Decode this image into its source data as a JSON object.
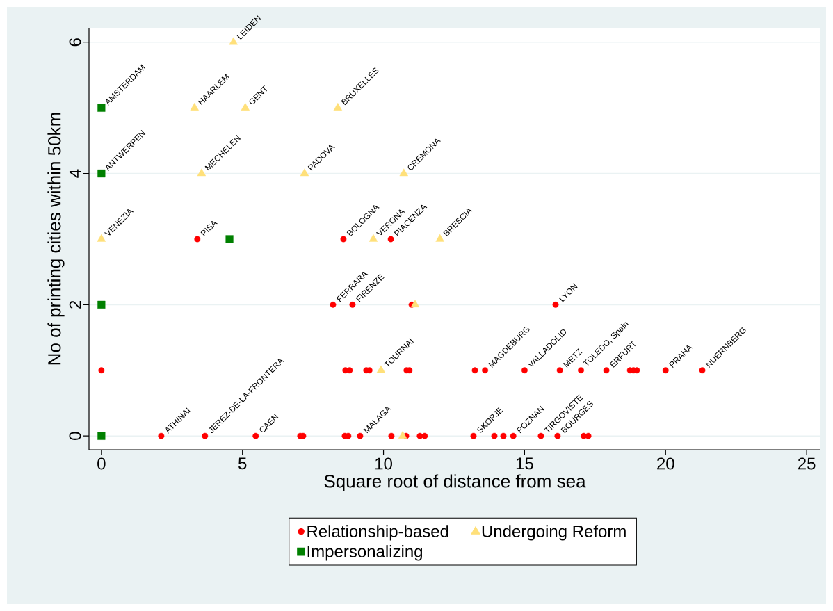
{
  "chart_data": {
    "type": "scatter",
    "xlabel": "Square root of distance from sea",
    "ylabel": "No of printing cities within 50km",
    "xlim": [
      -0.44,
      25.49
    ],
    "ylim": [
      -0.21,
      6.22
    ],
    "xticks": [
      0,
      5,
      10,
      15,
      20,
      25
    ],
    "yticks": [
      0,
      2,
      4,
      6
    ],
    "grid": "y",
    "legend": "bottom",
    "series": [
      {
        "name": "Relationship-based",
        "color": "#ff0000",
        "marker": "circle",
        "x": [
          3.4,
          8.58,
          10.26,
          8.21,
          8.9,
          11.0,
          16.1,
          0,
          8.65,
          8.8,
          9.39,
          9.5,
          10.82,
          10.92,
          13.24,
          13.31,
          13.6,
          15.0,
          16.25,
          17.0,
          17.9,
          18.74,
          18.86,
          18.98,
          20.0,
          21.3,
          2.12,
          3.67,
          5.47,
          7.05,
          7.15,
          8.63,
          8.75,
          9.17,
          10.28,
          10.8,
          11.29,
          11.46,
          13.19,
          13.93,
          14.25,
          14.6,
          15.58,
          16.17,
          17.1,
          17.26
        ],
        "values": [
          3,
          3,
          3,
          2,
          2,
          2,
          2,
          1,
          1,
          1,
          1,
          1,
          1,
          1,
          1,
          null,
          1,
          1,
          1,
          1,
          1,
          1,
          1,
          1,
          1,
          1,
          0,
          0,
          0,
          0,
          0,
          0,
          0,
          0,
          0,
          0,
          0,
          0,
          0,
          0,
          0,
          0,
          0,
          0,
          0,
          0
        ]
      },
      {
        "name": "Undergoing Reform",
        "color": "#ffe07a",
        "marker": "triangle",
        "x": [
          4.68,
          0,
          3.3,
          5.1,
          8.38,
          3.55,
          7.2,
          10.72,
          9.64,
          12.0,
          11.12,
          9.91,
          10.68
        ],
        "values": [
          6,
          3,
          5,
          5,
          5,
          4,
          4,
          4,
          3,
          3,
          2,
          1,
          0
        ]
      },
      {
        "name": "Impersonalizing",
        "color": "#008000",
        "marker": "square",
        "x": [
          0,
          0,
          4.54,
          0,
          0
        ],
        "values": [
          5,
          4,
          3,
          2,
          0
        ]
      }
    ],
    "annotations": [
      {
        "text": "LEIDEN",
        "x": 4.68,
        "y": 6
      },
      {
        "text": "AMSTERDAM",
        "x": 0,
        "y": 5
      },
      {
        "text": "HAARLEM",
        "x": 3.3,
        "y": 5
      },
      {
        "text": "GENT",
        "x": 5.1,
        "y": 5
      },
      {
        "text": "BRUXELLES",
        "x": 8.38,
        "y": 5
      },
      {
        "text": "ANTWERPEN",
        "x": 0,
        "y": 4
      },
      {
        "text": "MECHELEN",
        "x": 3.55,
        "y": 4
      },
      {
        "text": "PADOVA",
        "x": 7.2,
        "y": 4
      },
      {
        "text": "CREMONA",
        "x": 10.72,
        "y": 4
      },
      {
        "text": "VENEZIA",
        "x": 0,
        "y": 3
      },
      {
        "text": "PISA",
        "x": 3.4,
        "y": 3
      },
      {
        "text": "BOLOGNA",
        "x": 8.58,
        "y": 3
      },
      {
        "text": "VERONA",
        "x": 9.64,
        "y": 3
      },
      {
        "text": "PIACENZA",
        "x": 10.26,
        "y": 3
      },
      {
        "text": "BRESCIA",
        "x": 12.0,
        "y": 3
      },
      {
        "text": "FERRARA",
        "x": 8.21,
        "y": 2
      },
      {
        "text": "FIRENZE",
        "x": 8.9,
        "y": 2
      },
      {
        "text": "LYON",
        "x": 16.1,
        "y": 2
      },
      {
        "text": "TOURNAI",
        "x": 9.91,
        "y": 1
      },
      {
        "text": "MAGDEBURG",
        "x": 13.6,
        "y": 1
      },
      {
        "text": "VALLADOLID",
        "x": 15.0,
        "y": 1
      },
      {
        "text": "METZ",
        "x": 16.25,
        "y": 1
      },
      {
        "text": "TOLEDO, Spain",
        "x": 17.0,
        "y": 1
      },
      {
        "text": "ERFURT",
        "x": 17.9,
        "y": 1
      },
      {
        "text": "PRAHA",
        "x": 20.0,
        "y": 1
      },
      {
        "text": "NUERNBERG",
        "x": 21.3,
        "y": 1
      },
      {
        "text": "ATHINAI",
        "x": 2.12,
        "y": 0
      },
      {
        "text": "JEREZ-DE-LA-FRONTERA",
        "x": 3.67,
        "y": 0
      },
      {
        "text": "CAEN",
        "x": 5.47,
        "y": 0
      },
      {
        "text": "MALAGA",
        "x": 9.17,
        "y": 0
      },
      {
        "text": "SKOPJE",
        "x": 13.19,
        "y": 0
      },
      {
        "text": "POZNAN",
        "x": 14.6,
        "y": 0
      },
      {
        "text": "TIRGOVISTE",
        "x": 15.58,
        "y": 0
      },
      {
        "text": "BOURGES",
        "x": 16.17,
        "y": 0
      }
    ]
  }
}
